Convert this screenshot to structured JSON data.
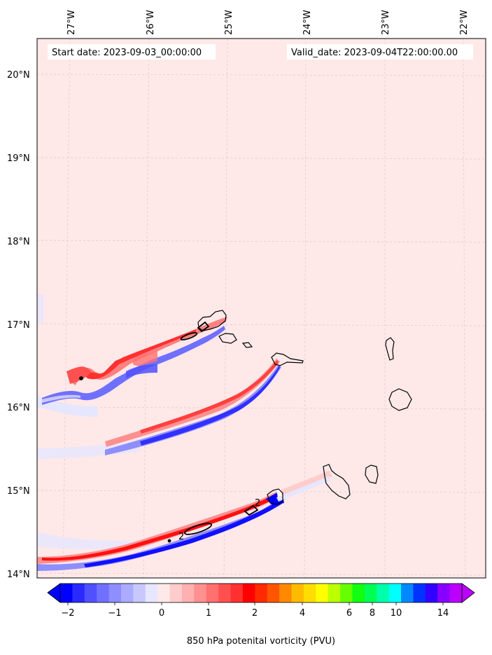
{
  "map": {
    "lon_labels": [
      "27°W",
      "26°W",
      "25°W",
      "24°W",
      "23°W",
      "22°W"
    ],
    "lat_labels": [
      "20°N",
      "19°N",
      "18°N",
      "17°N",
      "16°N",
      "15°N",
      "14°N"
    ],
    "start_date": "Start date: 2023-09-03_00:00:00",
    "valid_date": "Valid_date: 2023-09-04T22:00:00.00",
    "background_color": "#fee8e8",
    "contour_label": "2"
  },
  "colorbar": {
    "tick_labels": [
      "−2",
      "−1",
      "0",
      "1",
      "2",
      "4",
      "6",
      "8",
      "10",
      "14"
    ],
    "label": "850 hPa potenital vorticity (PVU)",
    "colors": [
      "#0000ff",
      "#2a2aff",
      "#5050ff",
      "#7070ff",
      "#8e8eff",
      "#ababff",
      "#c8c8ff",
      "#e6e6ff",
      "#ffe8e8",
      "#ffcccc",
      "#ffb0b0",
      "#ff9090",
      "#ff7070",
      "#ff5050",
      "#ff3030",
      "#ff0000",
      "#ff2a00",
      "#ff5500",
      "#ff8800",
      "#ffbb00",
      "#ffdd00",
      "#ffff00",
      "#bbff00",
      "#66ff00",
      "#11ff11",
      "#00ff55",
      "#00ffaa",
      "#00ffff",
      "#0088ff",
      "#0033ff",
      "#3300ff",
      "#8800ff",
      "#bb00ff"
    ]
  }
}
